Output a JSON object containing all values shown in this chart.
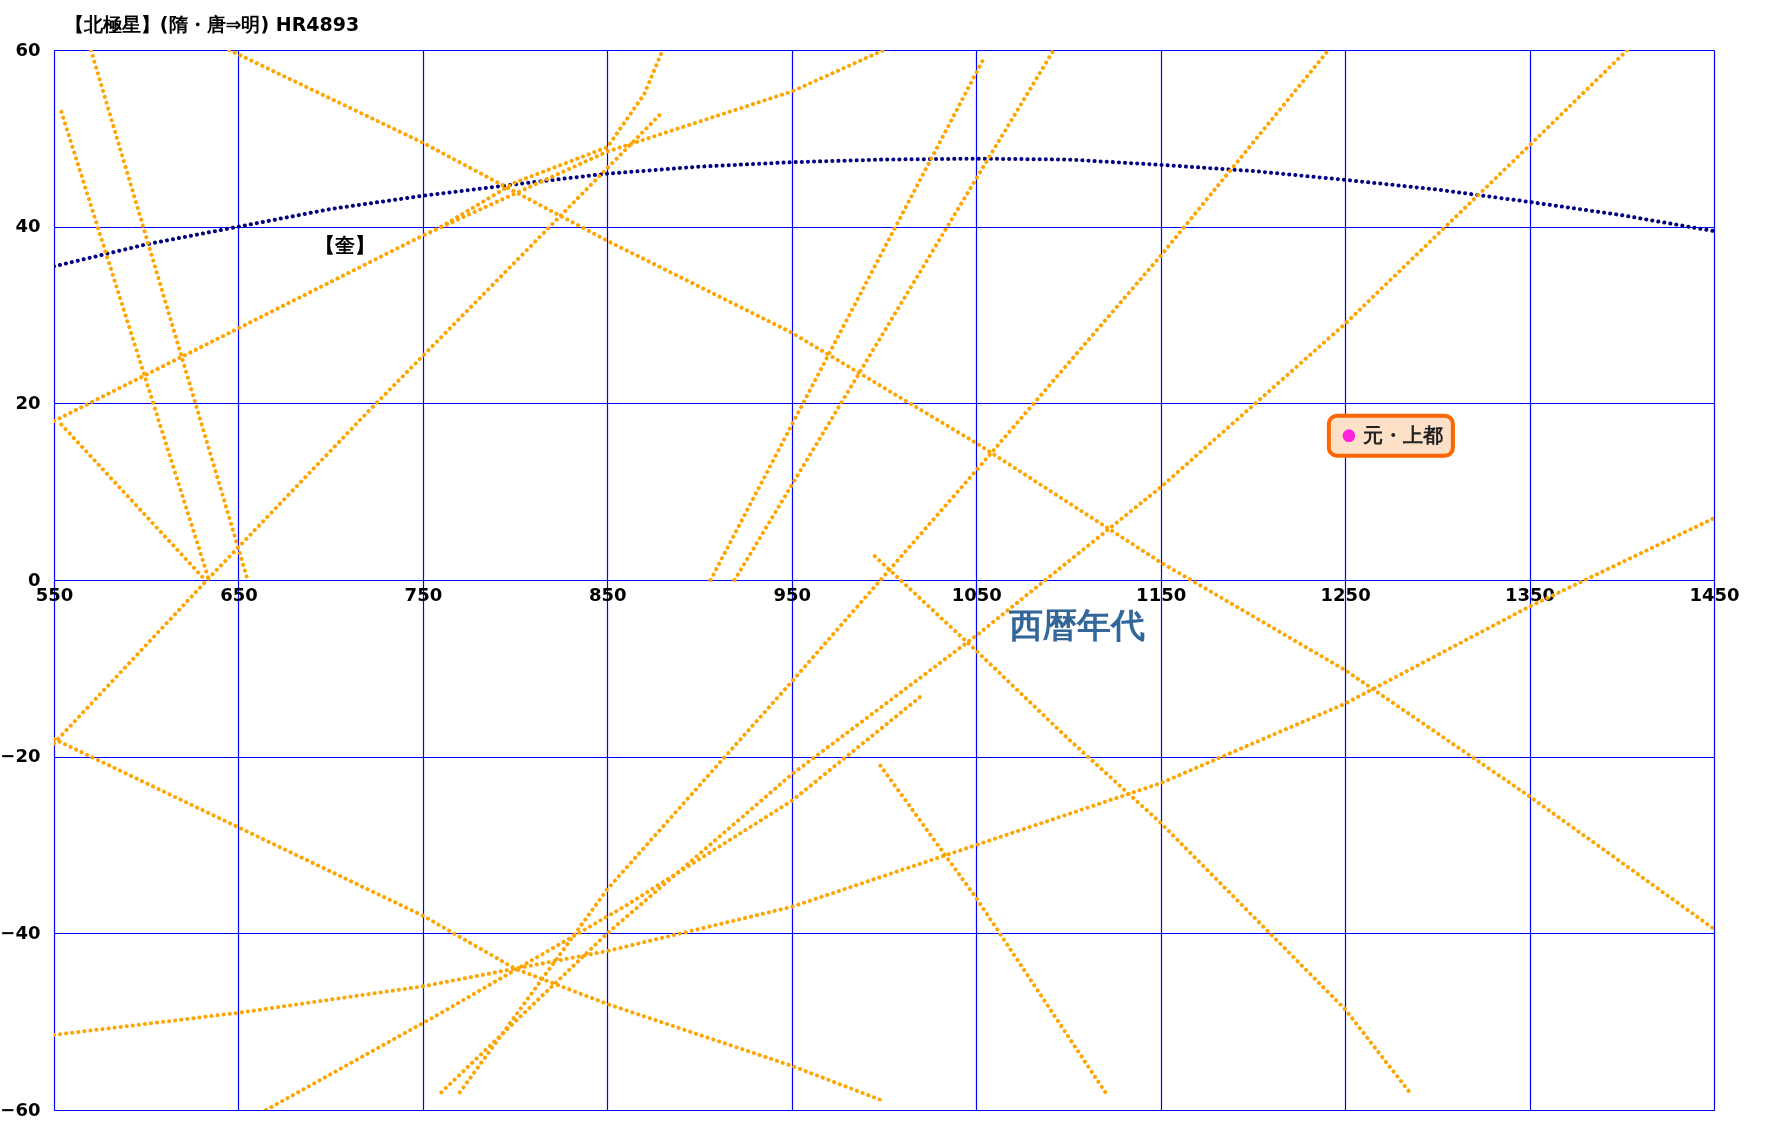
{
  "chart_data": {
    "type": "line",
    "title": "【北極星】(隋・唐⇒明) HR4893",
    "xlabel": "西暦年代",
    "xlim": [
      550,
      1450
    ],
    "xticks": [
      550,
      650,
      750,
      850,
      950,
      1050,
      1150,
      1250,
      1350,
      1450
    ],
    "ylim": [
      -60,
      60
    ],
    "yticks": [
      -60,
      -40,
      -20,
      0,
      20,
      40,
      60
    ],
    "grid": true,
    "line_style": "dotted",
    "legend": "right",
    "annotations": [
      "【奎】"
    ],
    "series": [
      {
        "color": "#000080",
        "x": [
          550,
          600,
          650,
          700,
          750,
          800,
          850,
          900,
          950,
          1000,
          1050,
          1100,
          1150,
          1200,
          1250,
          1300,
          1350,
          1400,
          1450
        ],
        "values": [
          35.5,
          38,
          40,
          42,
          43.5,
          44.8,
          46,
          46.8,
          47.3,
          47.6,
          47.7,
          47.6,
          47,
          46.3,
          45.3,
          44.2,
          42.8,
          41.3,
          39.5
        ]
      },
      {
        "color": "#ffa500",
        "x": [
          550,
          650,
          750,
          850,
          950,
          1000
        ],
        "values": [
          18,
          28.5,
          39,
          48.5,
          55.3,
          60
        ]
      },
      {
        "color": "#ffa500",
        "x": [
          550,
          633,
          720,
          800,
          880
        ],
        "values": [
          -18.5,
          0,
          19,
          36,
          53
        ]
      },
      {
        "color": "#ffa500",
        "x": [
          550,
          650,
          750,
          850,
          950,
          1050,
          1150,
          1250,
          1350,
          1450
        ],
        "values": [
          -51.5,
          -49,
          -46,
          -42,
          -37,
          -30,
          -23,
          -14,
          -3,
          7
        ]
      },
      {
        "color": "#ffa500",
        "x": [
          645,
          750,
          850,
          950,
          1050,
          1150,
          1250,
          1350,
          1450
        ],
        "values": [
          60,
          49.5,
          38.4,
          28,
          15.5,
          2,
          -10.2,
          -24.5,
          -39.5
        ]
      },
      {
        "color": "#ffa500",
        "x": [
          760,
          850,
          950,
          1050,
          1150,
          1250,
          1350,
          1403
        ],
        "values": [
          -58,
          -40,
          -22,
          -6.3,
          10.5,
          29,
          49.2,
          60
        ]
      },
      {
        "color": "#ffa500",
        "x": [
          770,
          850,
          950,
          1050,
          1150,
          1241
        ],
        "values": [
          -58,
          -35,
          -11.5,
          12.4,
          36.7,
          60
        ]
      },
      {
        "color": "#ffa500",
        "x": [
          550,
          650,
          750,
          800,
          850,
          950,
          1000
        ],
        "values": [
          -18,
          -28,
          -38,
          -44,
          -48,
          -55,
          -59
        ]
      },
      {
        "color": "#ffa500",
        "x": [
          995,
          1050,
          1100,
          1150,
          1250,
          1285
        ],
        "values": [
          2.7,
          -8,
          -18,
          -27.5,
          -48.6,
          -58
        ]
      },
      {
        "color": "#ffa500",
        "x": [
          998,
          1050,
          1120
        ],
        "values": [
          -21,
          -36,
          -58
        ]
      },
      {
        "color": "#ffa500",
        "x": [
          919,
          998,
          1092
        ],
        "values": [
          0,
          27.4,
          60
        ]
      },
      {
        "color": "#ffa500",
        "x": [
          906,
          998,
          1054
        ],
        "values": [
          0,
          36.7,
          59
        ]
      },
      {
        "color": "#ffa500",
        "x": [
          554,
          634
        ],
        "values": [
          53,
          0
        ]
      },
      {
        "color": "#ffa500",
        "x": [
          570,
          655
        ],
        "values": [
          60,
          0
        ]
      },
      {
        "color": "#ffa500",
        "x": [
          554,
          632
        ],
        "values": [
          17.6,
          0
        ]
      },
      {
        "color": "#ffa500",
        "x": [
          760,
          800,
          850,
          870,
          880
        ],
        "values": [
          40,
          45,
          49,
          55,
          60
        ]
      },
      {
        "color": "#ffa500",
        "x": [
          665,
          760,
          859,
          950,
          1021
        ],
        "values": [
          -60,
          -49,
          -37,
          -25,
          -13
        ]
      },
      {
        "name": "元・上都",
        "type": "scatter",
        "color": "#ff22dd"
      }
    ]
  }
}
